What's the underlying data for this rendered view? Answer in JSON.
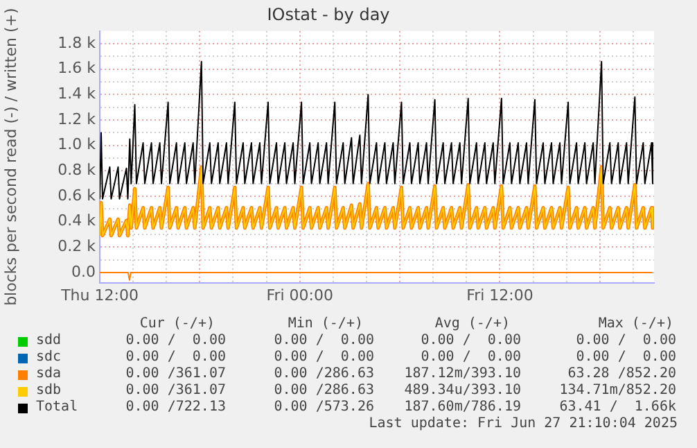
{
  "chart_data": {
    "type": "line",
    "title": "IOstat - by day",
    "ylabel": "blocks per second read (-) / written (+)",
    "x": [
      "2025-06-26T12:00",
      "2025-06-26T12:05",
      "2025-06-26T12:10",
      "2025-06-26T12:36",
      "2025-06-26T12:41",
      "2025-06-26T13:06",
      "2025-06-26T13:11",
      "2025-06-26T13:36",
      "2025-06-26T13:41",
      "2025-06-26T13:48",
      "2025-06-26T13:53",
      "2025-06-26T14:06",
      "2025-06-26T14:12",
      "2025-06-26T14:36",
      "2025-06-26T14:42",
      "2025-06-26T15:06",
      "2025-06-26T15:12",
      "2025-06-26T15:36",
      "2025-06-26T15:42",
      "2025-06-26T16:06",
      "2025-06-26T16:12",
      "2025-06-26T16:36",
      "2025-06-26T16:42",
      "2025-06-26T17:06",
      "2025-06-26T17:12",
      "2025-06-26T17:36",
      "2025-06-26T17:42",
      "2025-06-26T18:06",
      "2025-06-26T18:12",
      "2025-06-26T18:36",
      "2025-06-26T18:42",
      "2025-06-26T19:06",
      "2025-06-26T19:12",
      "2025-06-26T19:36",
      "2025-06-26T19:42",
      "2025-06-26T20:06",
      "2025-06-26T20:12",
      "2025-06-26T20:36",
      "2025-06-26T20:42",
      "2025-06-26T21:06",
      "2025-06-26T21:12",
      "2025-06-26T21:36",
      "2025-06-26T21:42",
      "2025-06-26T22:06",
      "2025-06-26T22:12",
      "2025-06-26T22:36",
      "2025-06-26T22:42",
      "2025-06-26T23:06",
      "2025-06-26T23:12",
      "2025-06-26T23:36",
      "2025-06-26T23:42",
      "2025-06-27T00:06",
      "2025-06-27T00:12",
      "2025-06-27T00:36",
      "2025-06-27T00:42",
      "2025-06-27T01:06",
      "2025-06-27T01:12",
      "2025-06-27T01:36",
      "2025-06-27T01:42",
      "2025-06-27T02:06",
      "2025-06-27T02:12",
      "2025-06-27T02:36",
      "2025-06-27T02:42",
      "2025-06-27T03:06",
      "2025-06-27T03:12",
      "2025-06-27T03:36",
      "2025-06-27T03:42",
      "2025-06-27T04:06",
      "2025-06-27T04:12",
      "2025-06-27T04:36",
      "2025-06-27T04:42",
      "2025-06-27T05:06",
      "2025-06-27T05:12",
      "2025-06-27T05:36",
      "2025-06-27T05:42",
      "2025-06-27T06:06",
      "2025-06-27T06:12",
      "2025-06-27T06:36",
      "2025-06-27T06:42",
      "2025-06-27T07:06",
      "2025-06-27T07:12",
      "2025-06-27T07:36",
      "2025-06-27T07:42",
      "2025-06-27T08:06",
      "2025-06-27T08:12",
      "2025-06-27T08:36",
      "2025-06-27T08:42",
      "2025-06-27T09:06",
      "2025-06-27T09:12",
      "2025-06-27T09:36",
      "2025-06-27T09:42",
      "2025-06-27T10:06",
      "2025-06-27T10:12",
      "2025-06-27T10:36",
      "2025-06-27T10:42",
      "2025-06-27T11:06",
      "2025-06-27T11:12",
      "2025-06-27T11:36",
      "2025-06-27T11:42",
      "2025-06-27T12:06",
      "2025-06-27T12:12",
      "2025-06-27T12:36",
      "2025-06-27T12:42",
      "2025-06-27T13:06",
      "2025-06-27T13:12",
      "2025-06-27T13:36",
      "2025-06-27T13:42",
      "2025-06-27T14:06",
      "2025-06-27T14:12",
      "2025-06-27T14:36",
      "2025-06-27T14:42",
      "2025-06-27T15:06",
      "2025-06-27T15:12",
      "2025-06-27T15:36",
      "2025-06-27T15:42",
      "2025-06-27T16:06",
      "2025-06-27T16:12",
      "2025-06-27T16:36",
      "2025-06-27T16:42",
      "2025-06-27T17:06",
      "2025-06-27T17:12",
      "2025-06-27T17:36",
      "2025-06-27T17:42",
      "2025-06-27T18:06",
      "2025-06-27T18:12",
      "2025-06-27T18:36",
      "2025-06-27T18:42",
      "2025-06-27T19:06",
      "2025-06-27T19:12",
      "2025-06-27T19:36",
      "2025-06-27T19:42",
      "2025-06-27T20:06",
      "2025-06-27T20:12",
      "2025-06-27T20:36",
      "2025-06-27T20:42",
      "2025-06-27T21:06",
      "2025-06-27T21:10"
    ],
    "series": [
      {
        "name": "sdd",
        "color": "#00cc00",
        "values": [
          null,
          null,
          null,
          null,
          null,
          null,
          null,
          null,
          null,
          null,
          null,
          null,
          null,
          null,
          null,
          null,
          null,
          null,
          null,
          null,
          null,
          null,
          null,
          null,
          null,
          null,
          null,
          null,
          null,
          null,
          null,
          null,
          null,
          null,
          null,
          null,
          null,
          null,
          null,
          null,
          null,
          null,
          null,
          null,
          null,
          null,
          null,
          null,
          null,
          null,
          null,
          null,
          null,
          null,
          null,
          null,
          null,
          null,
          null,
          null,
          null,
          null,
          null,
          null,
          null,
          null,
          null,
          null,
          null,
          null,
          null,
          null,
          null,
          null,
          null,
          null,
          null,
          null,
          null,
          null,
          null,
          null,
          null,
          null,
          null,
          null,
          null,
          null,
          null,
          null,
          null,
          null,
          null,
          null,
          null,
          null,
          null,
          null,
          null,
          null,
          null,
          null,
          null,
          null,
          null,
          null,
          null,
          null,
          null,
          null,
          null,
          null,
          null,
          null,
          null,
          null,
          null,
          null,
          null,
          null,
          null,
          null,
          null,
          null,
          null,
          null,
          null,
          null,
          null,
          null,
          null,
          null,
          null,
          null,
          null,
          null,
          null
        ]
      },
      {
        "name": "sdc",
        "color": "#0066b3",
        "values": [
          null,
          null,
          null,
          null,
          null,
          null,
          null,
          null,
          null,
          null,
          null,
          null,
          null,
          null,
          null,
          null,
          null,
          null,
          null,
          null,
          null,
          null,
          null,
          null,
          null,
          null,
          null,
          null,
          null,
          null,
          null,
          null,
          null,
          null,
          null,
          null,
          null,
          null,
          null,
          null,
          null,
          null,
          null,
          null,
          null,
          null,
          null,
          null,
          null,
          null,
          null,
          null,
          null,
          null,
          null,
          null,
          null,
          null,
          null,
          null,
          null,
          null,
          null,
          null,
          null,
          null,
          null,
          null,
          null,
          null,
          null,
          null,
          null,
          null,
          null,
          null,
          null,
          null,
          null,
          null,
          null,
          null,
          null,
          null,
          null,
          null,
          null,
          null,
          null,
          null,
          null,
          null,
          null,
          null,
          null,
          null,
          null,
          null,
          null,
          null,
          null,
          null,
          null,
          null,
          null,
          null,
          null,
          null,
          null,
          null,
          null,
          null,
          null,
          null,
          null,
          null,
          null,
          null,
          null,
          null,
          null,
          null,
          null,
          null,
          null,
          null,
          null,
          null,
          null,
          null,
          null,
          null,
          null,
          null,
          null,
          null,
          null
        ]
      },
      {
        "name": "sda",
        "color": "#ff8000",
        "values": [
          290,
          550,
          290,
          420,
          290,
          420,
          290,
          410,
          290,
          530,
          350,
          660,
          350,
          510,
          350,
          510,
          350,
          510,
          350,
          670,
          350,
          510,
          350,
          510,
          350,
          510,
          350,
          830,
          350,
          510,
          350,
          510,
          350,
          510,
          350,
          670,
          350,
          510,
          350,
          510,
          350,
          510,
          350,
          670,
          350,
          510,
          350,
          510,
          350,
          510,
          350,
          670,
          350,
          510,
          350,
          510,
          350,
          510,
          350,
          670,
          350,
          510,
          350,
          530,
          350,
          540,
          350,
          700,
          350,
          510,
          350,
          510,
          350,
          510,
          350,
          670,
          350,
          510,
          350,
          510,
          350,
          510,
          350,
          680,
          350,
          510,
          350,
          510,
          350,
          510,
          350,
          690,
          350,
          510,
          350,
          510,
          350,
          510,
          350,
          680,
          350,
          510,
          350,
          510,
          350,
          510,
          350,
          680,
          350,
          510,
          350,
          510,
          350,
          510,
          350,
          670,
          350,
          510,
          350,
          510,
          350,
          510,
          350,
          830,
          350,
          510,
          350,
          510,
          350,
          510,
          350,
          690,
          350,
          510,
          350,
          510,
          350
        ]
      },
      {
        "name": "sdb",
        "color": "#ffcc00",
        "values": [
          290,
          550,
          290,
          420,
          290,
          420,
          290,
          410,
          290,
          530,
          350,
          660,
          350,
          510,
          350,
          510,
          350,
          510,
          350,
          670,
          350,
          510,
          350,
          510,
          350,
          510,
          350,
          830,
          350,
          510,
          350,
          510,
          350,
          510,
          350,
          670,
          350,
          510,
          350,
          510,
          350,
          510,
          350,
          670,
          350,
          510,
          350,
          510,
          350,
          510,
          350,
          670,
          350,
          510,
          350,
          510,
          350,
          510,
          350,
          670,
          350,
          510,
          350,
          530,
          350,
          540,
          350,
          700,
          350,
          510,
          350,
          510,
          350,
          510,
          350,
          670,
          350,
          510,
          350,
          510,
          350,
          510,
          350,
          680,
          350,
          510,
          350,
          510,
          350,
          510,
          350,
          690,
          350,
          510,
          350,
          510,
          350,
          510,
          350,
          680,
          350,
          510,
          350,
          510,
          350,
          510,
          350,
          680,
          350,
          510,
          350,
          510,
          350,
          510,
          350,
          670,
          350,
          510,
          350,
          510,
          350,
          510,
          350,
          830,
          350,
          510,
          350,
          510,
          350,
          510,
          350,
          690,
          350,
          510,
          350,
          510,
          350
        ]
      },
      {
        "name": "Total",
        "color": "#000000",
        "values": [
          580,
          1100,
          580,
          830,
          580,
          830,
          580,
          820,
          580,
          1050,
          700,
          1320,
          700,
          1020,
          700,
          1020,
          700,
          1020,
          700,
          1340,
          700,
          1020,
          700,
          1020,
          700,
          1020,
          700,
          1660,
          700,
          1020,
          700,
          1020,
          700,
          1020,
          700,
          1340,
          700,
          1020,
          700,
          1020,
          700,
          1020,
          700,
          1340,
          700,
          1020,
          700,
          1020,
          700,
          1020,
          700,
          1340,
          700,
          1020,
          700,
          1020,
          700,
          1020,
          700,
          1340,
          700,
          1020,
          700,
          1060,
          700,
          1080,
          700,
          1400,
          700,
          1020,
          700,
          1020,
          700,
          1020,
          700,
          1340,
          700,
          1020,
          700,
          1020,
          700,
          1020,
          700,
          1360,
          700,
          1020,
          700,
          1020,
          700,
          1020,
          700,
          1370,
          700,
          1020,
          700,
          1020,
          700,
          1020,
          700,
          1370,
          700,
          1020,
          700,
          1020,
          700,
          1020,
          700,
          1360,
          700,
          1020,
          700,
          1020,
          700,
          1020,
          700,
          1340,
          700,
          1020,
          700,
          1020,
          700,
          1020,
          700,
          1660,
          700,
          1020,
          700,
          1020,
          700,
          1020,
          700,
          1380,
          700,
          1020,
          700,
          1020,
          700
        ]
      },
      {
        "color": "#ff8000",
        "x": [
          "2025-06-26T12:00",
          "2025-06-26T13:42",
          "2025-06-26T13:47",
          "2025-06-26T13:52",
          "2025-06-27T21:10"
        ],
        "values": [
          0,
          0,
          -60,
          0,
          0
        ]
      }
    ],
    "xlim": [
      "2025-06-26T12:00",
      "2025-06-27T21:15"
    ],
    "xticks": [
      {
        "value": "2025-06-26T12:00",
        "label": "Thu 12:00"
      },
      {
        "value": "2025-06-26T14:00",
        "label": null
      },
      {
        "value": "2025-06-26T16:00",
        "label": null
      },
      {
        "value": "2025-06-26T18:00",
        "label": null
      },
      {
        "value": "2025-06-26T20:00",
        "label": null
      },
      {
        "value": "2025-06-26T22:00",
        "label": null
      },
      {
        "value": "2025-06-27T00:00",
        "label": "Fri 00:00"
      },
      {
        "value": "2025-06-27T02:00",
        "label": null
      },
      {
        "value": "2025-06-27T04:00",
        "label": null
      },
      {
        "value": "2025-06-27T06:00",
        "label": null
      },
      {
        "value": "2025-06-27T08:00",
        "label": null
      },
      {
        "value": "2025-06-27T10:00",
        "label": null
      },
      {
        "value": "2025-06-27T12:00",
        "label": "Fri 12:00"
      },
      {
        "value": "2025-06-27T14:00",
        "label": null
      },
      {
        "value": "2025-06-27T16:00",
        "label": null
      },
      {
        "value": "2025-06-27T18:00",
        "label": null
      },
      {
        "value": "2025-06-27T20:00",
        "label": null
      }
    ],
    "ylim": [
      -80,
      1900
    ],
    "yticks": [
      {
        "value": 0,
        "label": "0.0"
      },
      {
        "value": 100,
        "label": null
      },
      {
        "value": 200,
        "label": "0.2 k"
      },
      {
        "value": 300,
        "label": null
      },
      {
        "value": 400,
        "label": "0.4 k"
      },
      {
        "value": 500,
        "label": null
      },
      {
        "value": 600,
        "label": "0.6 k"
      },
      {
        "value": 700,
        "label": null
      },
      {
        "value": 800,
        "label": "0.8 k"
      },
      {
        "value": 900,
        "label": null
      },
      {
        "value": 1000,
        "label": "1.0 k"
      },
      {
        "value": 1100,
        "label": null
      },
      {
        "value": 1200,
        "label": "1.2 k"
      },
      {
        "value": 1300,
        "label": null
      },
      {
        "value": 1400,
        "label": "1.4 k"
      },
      {
        "value": 1500,
        "label": null
      },
      {
        "value": 1600,
        "label": "1.6 k"
      },
      {
        "value": 1700,
        "label": null
      },
      {
        "value": 1800,
        "label": "1.8 k"
      }
    ],
    "grid": true,
    "legend": "bottom",
    "annotations": [
      "Cur (-/+)",
      "Min (-/+)",
      "Avg (-/+)",
      "Max (-/+)",
      "0.00 /  0.00",
      "0.00 /  0.00",
      "0.00 /  0.00",
      "0.00 /  0.00",
      "0.00 /  0.00",
      "0.00 /  0.00",
      "0.00 /  0.00",
      "0.00 /  0.00",
      "0.00 /361.07",
      "0.00 /286.63",
      "187.12m/393.10",
      "63.28 /852.20",
      "0.00 /361.07",
      "0.00 /286.63",
      "489.34u/393.10",
      "134.71m/852.20",
      "0.00 /722.13",
      "0.00 /573.26",
      "187.60m/786.19",
      "63.41 /  1.66k",
      "Last update: Fri Jun 27 21:10:04 2025"
    ]
  }
}
